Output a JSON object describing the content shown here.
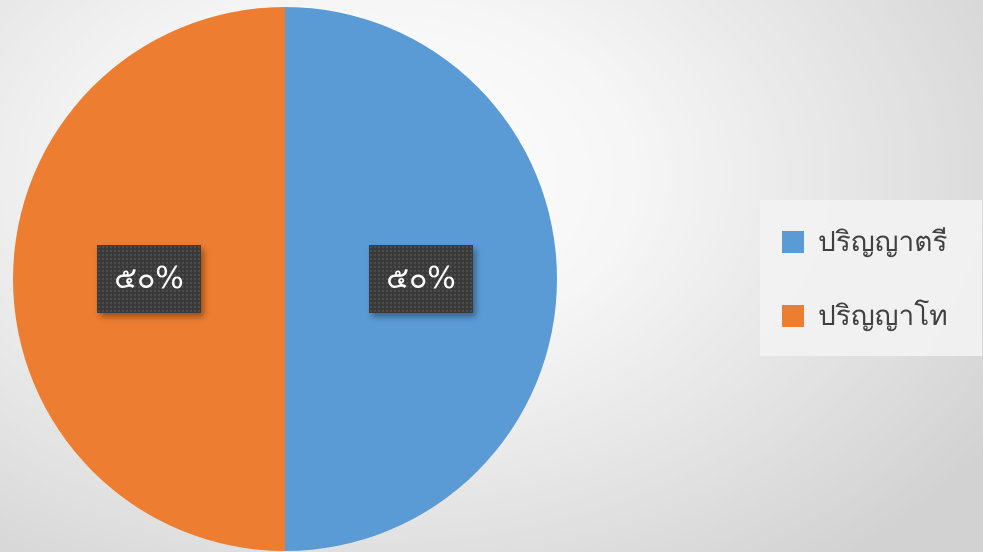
{
  "chart_data": {
    "type": "pie",
    "categories": [
      "ปริญญาตรี",
      "ปริญญาโท"
    ],
    "values": [
      50,
      50
    ],
    "data_labels": [
      "๕๐%",
      "๕๐%"
    ],
    "colors": [
      "#5b9bd5",
      "#ed7d31"
    ],
    "legend_position": "right",
    "title": ""
  }
}
